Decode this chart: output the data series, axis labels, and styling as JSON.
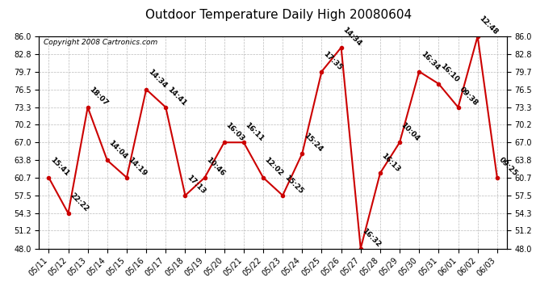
{
  "title": "Outdoor Temperature Daily High 20080604",
  "copyright": "Copyright 2008 Cartronics.com",
  "dates": [
    "05/11",
    "05/12",
    "05/13",
    "05/14",
    "05/15",
    "05/16",
    "05/17",
    "05/18",
    "05/19",
    "05/20",
    "05/21",
    "05/22",
    "05/23",
    "05/24",
    "05/25",
    "05/26",
    "05/27",
    "05/28",
    "05/29",
    "05/30",
    "05/31",
    "06/01",
    "06/02",
    "06/03"
  ],
  "values": [
    60.7,
    54.3,
    73.3,
    63.8,
    60.7,
    76.5,
    73.3,
    57.5,
    60.7,
    67.0,
    67.0,
    60.7,
    57.5,
    65.0,
    79.7,
    84.0,
    48.0,
    61.5,
    67.0,
    79.7,
    77.5,
    73.3,
    86.0,
    60.7
  ],
  "labels": [
    "15:41",
    "22:22",
    "18:07",
    "14:04",
    "14:19",
    "14:34",
    "14:41",
    "17:13",
    "10:46",
    "16:03",
    "16:11",
    "12:02",
    "15:25",
    "15:24",
    "17:35",
    "14:34",
    "16:32",
    "16:13",
    "10:04",
    "16:34",
    "16:10",
    "09:38",
    "12:48",
    "09:25"
  ],
  "line_color": "#cc0000",
  "marker_color": "#cc0000",
  "bg_color": "#ffffff",
  "grid_color": "#bbbbbb",
  "ylim": [
    48.0,
    86.0
  ],
  "yticks": [
    48.0,
    51.2,
    54.3,
    57.5,
    60.7,
    63.8,
    67.0,
    70.2,
    73.3,
    76.5,
    79.7,
    82.8,
    86.0
  ],
  "title_fontsize": 11,
  "label_fontsize": 6.5,
  "tick_fontsize": 7,
  "copyright_fontsize": 6.5
}
